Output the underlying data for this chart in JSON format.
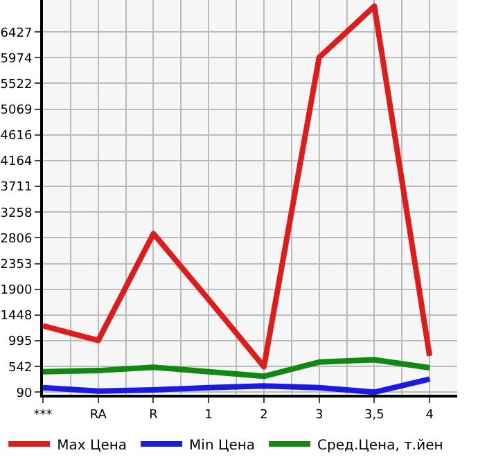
{
  "chart_data": {
    "type": "line",
    "categories": [
      "***",
      "RA",
      "R",
      "1",
      "2",
      "3",
      "3,5",
      "4"
    ],
    "series": [
      {
        "name": "Max Цена",
        "color": "#dd1c1c",
        "values": [
          1260,
          1000,
          2880,
          1720,
          540,
          5980,
          6880,
          730
        ]
      },
      {
        "name": "Min Цена",
        "color": "#1a1ae0",
        "values": [
          170,
          110,
          130,
          170,
          200,
          170,
          90,
          320
        ]
      },
      {
        "name": "Сред.Цена, т.йен",
        "color": "#118811",
        "values": [
          450,
          470,
          530,
          450,
          370,
          620,
          660,
          520
        ]
      }
    ],
    "ylim": [
      45,
      6990
    ],
    "yticks": [
      90,
      542,
      995,
      1448,
      1900,
      2353,
      2806,
      3258,
      3711,
      4164,
      4616,
      5069,
      5522,
      5974,
      6427
    ],
    "grid": true,
    "legend": "bottom",
    "marker": "none",
    "line_style": "solid"
  }
}
